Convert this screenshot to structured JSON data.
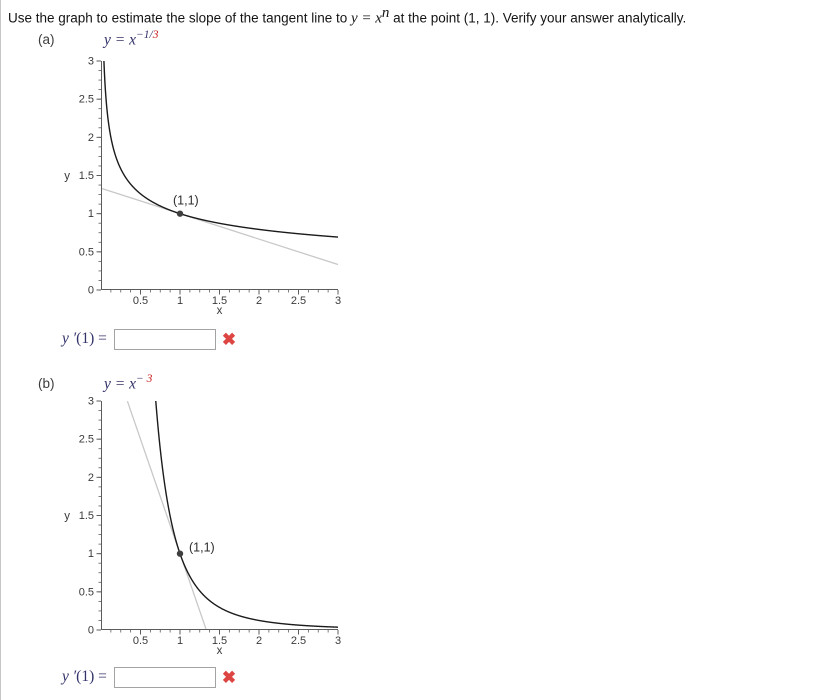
{
  "problem": {
    "statement_prefix": "Use the graph to estimate the slope of the tangent line to ",
    "statement_math": "y = x",
    "statement_exponent": "n",
    "statement_suffix": " at the point (1, 1). Verify your answer analytically."
  },
  "parts": [
    {
      "label": "(a)",
      "formula_base": "y = x",
      "formula_exp_dark": "−1/",
      "formula_exp_red": "3",
      "answer_label_math": "y ′",
      "answer_label_rest": "(1) = ",
      "answer_value": "",
      "status": "incorrect",
      "status_icon": "✖"
    },
    {
      "label": "(b)",
      "formula_base": "y = x",
      "formula_exp_dark": "− ",
      "formula_exp_red": "3",
      "answer_label_math": "y ′",
      "answer_label_rest": "(1) = ",
      "answer_value": "",
      "status": "incorrect",
      "status_icon": "✖"
    }
  ],
  "colors": {
    "math_text": "#32326a",
    "exponent_red": "#cb1e1e",
    "incorrect_red": "#dd4543",
    "axis_gray": "#5c5c5c"
  },
  "chart_data": [
    {
      "type": "line",
      "function": "y = x^(-1/3)",
      "exponent": -0.3333333333333333,
      "xlabel": "x",
      "ylabel": "y",
      "xlim": [
        0,
        3
      ],
      "ylim": [
        0,
        3
      ],
      "x_tick_labels": [
        "0.5",
        "1",
        "1.5",
        "2",
        "2.5",
        "3"
      ],
      "y_tick_labels": [
        "3",
        "2.5",
        "2",
        "1.5",
        "1",
        "0.5",
        "0"
      ],
      "minor_tick_step": 0.125,
      "grid": "off",
      "legend": "off",
      "tangent": {
        "slope": -0.3333333333333333,
        "through": [
          1,
          1
        ]
      },
      "point_annotation": {
        "x": 1,
        "y": 1,
        "label": "(1,1)"
      },
      "point_label_offset": [
        -7,
        -9
      ],
      "curve_samples": {
        "x": [
          0.037,
          0.125,
          0.25,
          0.5,
          1,
          1.5,
          2,
          2.5,
          3
        ],
        "y": [
          3,
          2,
          1.587,
          1.26,
          1,
          0.874,
          0.794,
          0.737,
          0.693
        ]
      },
      "colors": {
        "curve": "#1b1b1b",
        "tangent": "#c8c8c8",
        "point": "#3f3f3f"
      }
    },
    {
      "type": "line",
      "function": "y = x^(-3)",
      "exponent": -3,
      "xlabel": "x",
      "ylabel": "y",
      "xlim": [
        0,
        3
      ],
      "ylim": [
        0,
        3
      ],
      "x_tick_labels": [
        "0.5",
        "1",
        "1.5",
        "2",
        "2.5",
        "3"
      ],
      "y_tick_labels": [
        "3",
        "2.5",
        "2",
        "1.5",
        "1",
        "0.5",
        "0"
      ],
      "minor_tick_step": 0.125,
      "grid": "off",
      "legend": "off",
      "tangent": {
        "slope": -3,
        "through": [
          1,
          1
        ]
      },
      "point_annotation": {
        "x": 1,
        "y": 1,
        "label": "(1,1)"
      },
      "point_label_offset": [
        9,
        -2
      ],
      "curve_samples": {
        "x": [
          0.693,
          0.75,
          0.8,
          0.9,
          1,
          1.25,
          1.5,
          2,
          2.5,
          3
        ],
        "y": [
          3,
          2.37,
          1.953,
          1.372,
          1,
          0.512,
          0.296,
          0.125,
          0.064,
          0.037
        ]
      },
      "colors": {
        "curve": "#1b1b1b",
        "tangent": "#c8c8c8",
        "point": "#3f3f3f"
      }
    }
  ]
}
